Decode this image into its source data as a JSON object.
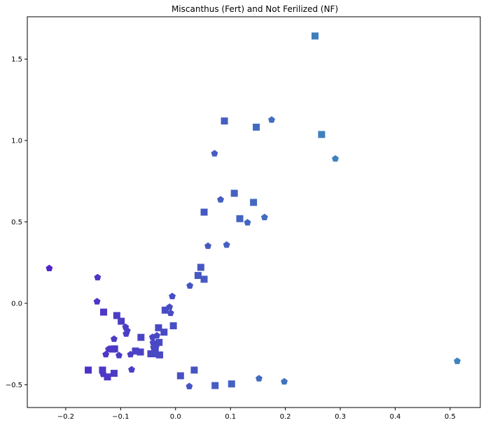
{
  "chart_data": {
    "type": "scatter",
    "title": "Miscanthus (Fert) and Not Ferilized (NF)",
    "xlabel": "",
    "ylabel": "",
    "xlim": [
      -0.27,
      0.555
    ],
    "ylim": [
      -0.64,
      1.76
    ],
    "xticks": [
      -0.2,
      -0.1,
      0.0,
      0.1,
      0.2,
      0.3,
      0.4,
      0.5
    ],
    "xtick_labels": [
      "−0.2",
      "−0.1",
      "0.0",
      "0.1",
      "0.2",
      "0.3",
      "0.4",
      "0.5"
    ],
    "yticks": [
      -0.5,
      0.0,
      0.5,
      1.0,
      1.5
    ],
    "ytick_labels": [
      "−0.5",
      "0.0",
      "0.5",
      "1.0",
      "1.5"
    ],
    "grid": false,
    "legend": "none",
    "series": [
      {
        "marker": "square",
        "color": "#4a50c8",
        "points": [
          [
            0.254,
            1.642
          ],
          [
            0.089,
            1.12
          ],
          [
            0.147,
            1.082
          ],
          [
            0.266,
            1.037
          ],
          [
            0.107,
            0.676
          ],
          [
            0.142,
            0.62
          ],
          [
            0.052,
            0.56
          ],
          [
            0.117,
            0.52
          ],
          [
            0.046,
            0.221
          ],
          [
            0.041,
            0.171
          ],
          [
            0.052,
            0.148
          ],
          [
            -0.131,
            -0.054
          ],
          [
            -0.107,
            -0.075
          ],
          [
            -0.099,
            -0.11
          ],
          [
            -0.019,
            -0.042
          ],
          [
            -0.004,
            -0.138
          ],
          [
            -0.031,
            -0.15
          ],
          [
            -0.063,
            -0.209
          ],
          [
            -0.021,
            -0.177
          ],
          [
            -0.03,
            -0.24
          ],
          [
            -0.036,
            -0.25
          ],
          [
            -0.037,
            -0.281
          ],
          [
            -0.111,
            -0.28
          ],
          [
            -0.115,
            -0.281
          ],
          [
            -0.073,
            -0.293
          ],
          [
            -0.064,
            -0.299
          ],
          [
            -0.045,
            -0.31
          ],
          [
            -0.029,
            -0.317
          ],
          [
            -0.159,
            -0.41
          ],
          [
            -0.133,
            -0.41
          ],
          [
            -0.112,
            -0.43
          ],
          [
            -0.124,
            -0.452
          ],
          [
            0.009,
            -0.445
          ],
          [
            0.034,
            -0.41
          ],
          [
            0.072,
            -0.505
          ],
          [
            0.102,
            -0.495
          ]
        ]
      },
      {
        "marker": "pentagon",
        "color": "#4a62c6",
        "points": [
          [
            0.175,
            1.127
          ],
          [
            0.071,
            0.92
          ],
          [
            0.291,
            0.888
          ],
          [
            0.082,
            0.637
          ],
          [
            0.162,
            0.528
          ],
          [
            0.131,
            0.496
          ],
          [
            0.093,
            0.359
          ],
          [
            0.059,
            0.352
          ],
          [
            0.026,
            0.108
          ],
          [
            -0.006,
            0.043
          ],
          [
            -0.011,
            -0.023
          ],
          [
            -0.009,
            -0.06
          ],
          [
            -0.23,
            0.215
          ],
          [
            -0.142,
            0.159
          ],
          [
            -0.143,
            0.011
          ],
          [
            -0.091,
            -0.146
          ],
          [
            -0.088,
            -0.168
          ],
          [
            -0.09,
            -0.187
          ],
          [
            -0.034,
            -0.198
          ],
          [
            -0.042,
            -0.208
          ],
          [
            -0.112,
            -0.219
          ],
          [
            -0.041,
            -0.242
          ],
          [
            -0.04,
            -0.272
          ],
          [
            -0.122,
            -0.282
          ],
          [
            -0.127,
            -0.314
          ],
          [
            -0.082,
            -0.314
          ],
          [
            -0.103,
            -0.32
          ],
          [
            -0.035,
            -0.314
          ],
          [
            -0.08,
            -0.407
          ],
          [
            -0.132,
            -0.435
          ],
          [
            0.025,
            -0.51
          ],
          [
            0.152,
            -0.462
          ],
          [
            0.198,
            -0.481
          ],
          [
            0.513,
            -0.355
          ]
        ]
      }
    ]
  }
}
